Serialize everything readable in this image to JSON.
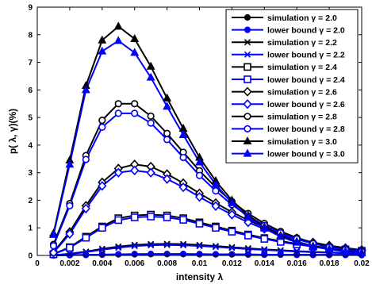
{
  "chart_data": {
    "type": "line",
    "xlabel": "intensity λ",
    "ylabel": "p( λ, γ)(%)",
    "xlim": [
      0,
      0.02
    ],
    "ylim": [
      0,
      9
    ],
    "x_ticks": [
      "0",
      "0.002",
      "0.004",
      "0.006",
      "0.008",
      "0.01",
      "0.012",
      "0.014",
      "0.016",
      "0.018",
      "0.02"
    ],
    "y_ticks": [
      "0",
      "1",
      "2",
      "3",
      "4",
      "5",
      "6",
      "7",
      "8",
      "9"
    ],
    "grid": false,
    "legend_position": "top-right",
    "x": [
      0.001,
      0.002,
      0.003,
      0.004,
      0.005,
      0.006,
      0.007,
      0.008,
      0.009,
      0.01,
      0.011,
      0.012,
      0.013,
      0.014,
      0.015,
      0.016,
      0.017,
      0.018,
      0.019,
      0.02
    ],
    "series": [
      {
        "name": "simulation γ = 2.0",
        "color": "#000000",
        "marker": "circle-filled",
        "values": [
          0.0,
          0.01,
          0.02,
          0.03,
          0.04,
          0.05,
          0.05,
          0.05,
          0.05,
          0.05,
          0.04,
          0.04,
          0.04,
          0.03,
          0.03,
          0.03,
          0.02,
          0.02,
          0.02,
          0.02
        ]
      },
      {
        "name": "lower bound γ = 2.0",
        "color": "#0000ff",
        "marker": "circle-filled",
        "values": [
          0.0,
          0.01,
          0.02,
          0.03,
          0.04,
          0.04,
          0.05,
          0.05,
          0.05,
          0.04,
          0.04,
          0.04,
          0.03,
          0.03,
          0.03,
          0.02,
          0.02,
          0.02,
          0.02,
          0.01
        ]
      },
      {
        "name": "simulation γ = 2.2",
        "color": "#000000",
        "marker": "x",
        "values": [
          0.01,
          0.06,
          0.14,
          0.24,
          0.32,
          0.38,
          0.41,
          0.42,
          0.41,
          0.38,
          0.34,
          0.3,
          0.26,
          0.22,
          0.19,
          0.16,
          0.13,
          0.11,
          0.09,
          0.08
        ]
      },
      {
        "name": "lower bound γ = 2.2",
        "color": "#0000ff",
        "marker": "x",
        "values": [
          0.01,
          0.05,
          0.12,
          0.21,
          0.28,
          0.34,
          0.37,
          0.38,
          0.37,
          0.34,
          0.31,
          0.27,
          0.23,
          0.2,
          0.17,
          0.14,
          0.12,
          0.1,
          0.08,
          0.07
        ]
      },
      {
        "name": "simulation γ = 2.4",
        "color": "#000000",
        "marker": "square",
        "values": [
          0.05,
          0.3,
          0.68,
          1.05,
          1.35,
          1.45,
          1.48,
          1.45,
          1.35,
          1.2,
          1.05,
          0.9,
          0.76,
          0.63,
          0.52,
          0.42,
          0.34,
          0.27,
          0.22,
          0.17
        ]
      },
      {
        "name": "lower bound γ = 2.4",
        "color": "#0000ff",
        "marker": "square",
        "values": [
          0.04,
          0.28,
          0.64,
          1.0,
          1.28,
          1.38,
          1.41,
          1.38,
          1.29,
          1.15,
          1.0,
          0.86,
          0.72,
          0.6,
          0.49,
          0.4,
          0.32,
          0.26,
          0.2,
          0.16
        ]
      },
      {
        "name": "simulation γ = 2.6",
        "color": "#000000",
        "marker": "diamond",
        "values": [
          0.12,
          0.85,
          1.8,
          2.65,
          3.15,
          3.3,
          3.22,
          2.95,
          2.62,
          2.25,
          1.9,
          1.57,
          1.28,
          1.02,
          0.8,
          0.62,
          0.47,
          0.36,
          0.27,
          0.2
        ]
      },
      {
        "name": "lower bound γ = 2.6",
        "color": "#0000ff",
        "marker": "diamond",
        "values": [
          0.1,
          0.78,
          1.7,
          2.52,
          3.0,
          3.08,
          3.0,
          2.77,
          2.47,
          2.12,
          1.79,
          1.48,
          1.2,
          0.96,
          0.75,
          0.58,
          0.44,
          0.33,
          0.25,
          0.18
        ]
      },
      {
        "name": "simulation γ = 2.8",
        "color": "#000000",
        "marker": "circle-open",
        "values": [
          0.4,
          1.88,
          3.62,
          4.9,
          5.5,
          5.5,
          5.05,
          4.42,
          3.74,
          3.07,
          2.47,
          1.95,
          1.52,
          1.16,
          0.87,
          0.64,
          0.46,
          0.33,
          0.23,
          0.15
        ]
      },
      {
        "name": "lower bound γ = 2.8",
        "color": "#0000ff",
        "marker": "circle-open",
        "values": [
          0.35,
          1.8,
          3.48,
          4.65,
          5.15,
          5.15,
          4.8,
          4.2,
          3.55,
          2.9,
          2.34,
          1.84,
          1.43,
          1.09,
          0.82,
          0.6,
          0.43,
          0.3,
          0.21,
          0.14
        ]
      },
      {
        "name": "simulation γ = 3.0",
        "color": "#000000",
        "marker": "triangle-filled",
        "values": [
          0.8,
          3.45,
          6.15,
          7.8,
          8.3,
          7.85,
          6.85,
          5.7,
          4.6,
          3.55,
          2.7,
          2.0,
          1.45,
          1.03,
          0.72,
          0.5,
          0.34,
          0.23,
          0.15,
          0.1
        ]
      },
      {
        "name": "lower bound γ = 3.0",
        "color": "#0000ff",
        "marker": "triangle-filled",
        "values": [
          0.75,
          3.3,
          6.0,
          7.4,
          7.78,
          7.35,
          6.45,
          5.4,
          4.37,
          3.38,
          2.57,
          1.9,
          1.38,
          0.98,
          0.68,
          0.47,
          0.32,
          0.22,
          0.14,
          0.09
        ]
      }
    ]
  }
}
